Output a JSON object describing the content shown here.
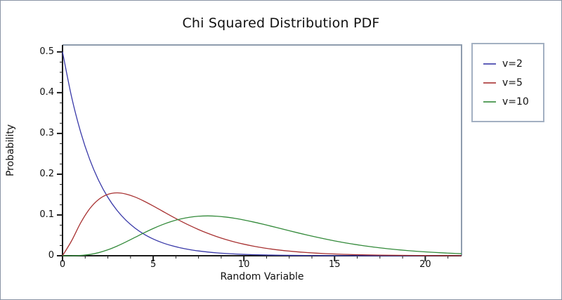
{
  "figure": {
    "title": "Chi Squared Distribution PDF"
  },
  "colors": {
    "background": "#ffffff",
    "axis": "#1a1a1a",
    "frame": "#8e9cae",
    "legend_border": "#a3b0c2",
    "outer_border": "#8b95a5"
  },
  "chart_data": {
    "type": "line",
    "title": "Chi Squared Distribution PDF",
    "xlabel": "Random Variable",
    "ylabel": "Probability",
    "xlim": [
      0,
      22
    ],
    "ylim": [
      0,
      0.517
    ],
    "grid": false,
    "legend_position": "outside-right",
    "x_major_ticks": [
      0,
      5,
      10,
      15,
      20
    ],
    "x_tick_labels": [
      "0",
      "5",
      "10",
      "15",
      "20"
    ],
    "x_minor_step": 1.25,
    "y_major_ticks": [
      0,
      0.1,
      0.2,
      0.3,
      0.4,
      0.5
    ],
    "y_tick_labels": [
      "0",
      "0.1",
      "0.2",
      "0.3",
      "0.4",
      "0.5"
    ],
    "y_minor_step": 0.025,
    "x": [
      0,
      0.5,
      1,
      1.5,
      2,
      2.5,
      3,
      3.5,
      4,
      4.5,
      5,
      5.5,
      6,
      6.5,
      7,
      7.5,
      8,
      8.5,
      9,
      9.5,
      10,
      10.5,
      11,
      11.5,
      12,
      12.5,
      13,
      13.5,
      14,
      14.5,
      15,
      15.5,
      16,
      16.5,
      17,
      17.5,
      18,
      18.5,
      19,
      19.5,
      20,
      20.5,
      21,
      21.5,
      22
    ],
    "series": [
      {
        "name": "v=2",
        "color": "#3838a8",
        "values": [
          0.5,
          0.3894,
          0.30327,
          0.23618,
          0.18394,
          0.14325,
          0.11157,
          0.08689,
          0.06767,
          0.0527,
          0.04104,
          0.03196,
          0.02489,
          0.01939,
          0.0151,
          0.01176,
          0.00916,
          0.00713,
          0.00555,
          0.00433,
          0.00337,
          0.00262,
          0.00204,
          0.00159,
          0.00124,
          0.00097,
          0.00075,
          0.00059,
          0.00046,
          0.00036,
          0.00028,
          0.00022,
          0.00017,
          0.00013,
          0.0001,
          8e-05,
          6e-05,
          5e-05,
          4e-05,
          3e-05,
          2e-05,
          2e-05,
          1e-05,
          1e-05,
          1e-05
        ]
      },
      {
        "name": "v=5",
        "color": "#a83232",
        "values": [
          0,
          0.03662,
          0.08066,
          0.1154,
          0.13837,
          0.1506,
          0.15418,
          0.15131,
          0.14398,
          0.1338,
          0.12204,
          0.10966,
          0.0973,
          0.08545,
          0.07437,
          0.06424,
          0.05511,
          0.04701,
          0.03989,
          0.03369,
          0.02833,
          0.02375,
          0.01983,
          0.01651,
          0.0137,
          0.01135,
          0.00937,
          0.00772,
          0.00635,
          0.00521,
          0.00427,
          0.0035,
          0.00286,
          0.00233,
          0.0019,
          0.00154,
          0.00125,
          0.00102,
          0.00082,
          0.00067,
          0.00054,
          0.00044,
          0.00035,
          0.00028,
          0.00023
        ]
      },
      {
        "name": "v=10",
        "color": "#338a3a",
        "values": [
          0,
          6e-05,
          0.00079,
          0.00311,
          0.00766,
          0.01457,
          0.02353,
          0.03395,
          0.04511,
          0.05628,
          0.0668,
          0.07617,
          0.08402,
          0.09013,
          0.09441,
          0.09689,
          0.09768,
          0.09696,
          0.09491,
          0.09176,
          0.08773,
          0.08305,
          0.07791,
          0.07248,
          0.06693,
          0.06137,
          0.05591,
          0.05064,
          0.04561,
          0.04088,
          0.03646,
          0.03237,
          0.02863,
          0.02522,
          0.02213,
          0.01935,
          0.01687,
          0.01466,
          0.0127,
          0.01097,
          0.00946,
          0.00813,
          0.00697,
          0.00597,
          0.00509
        ]
      }
    ]
  }
}
